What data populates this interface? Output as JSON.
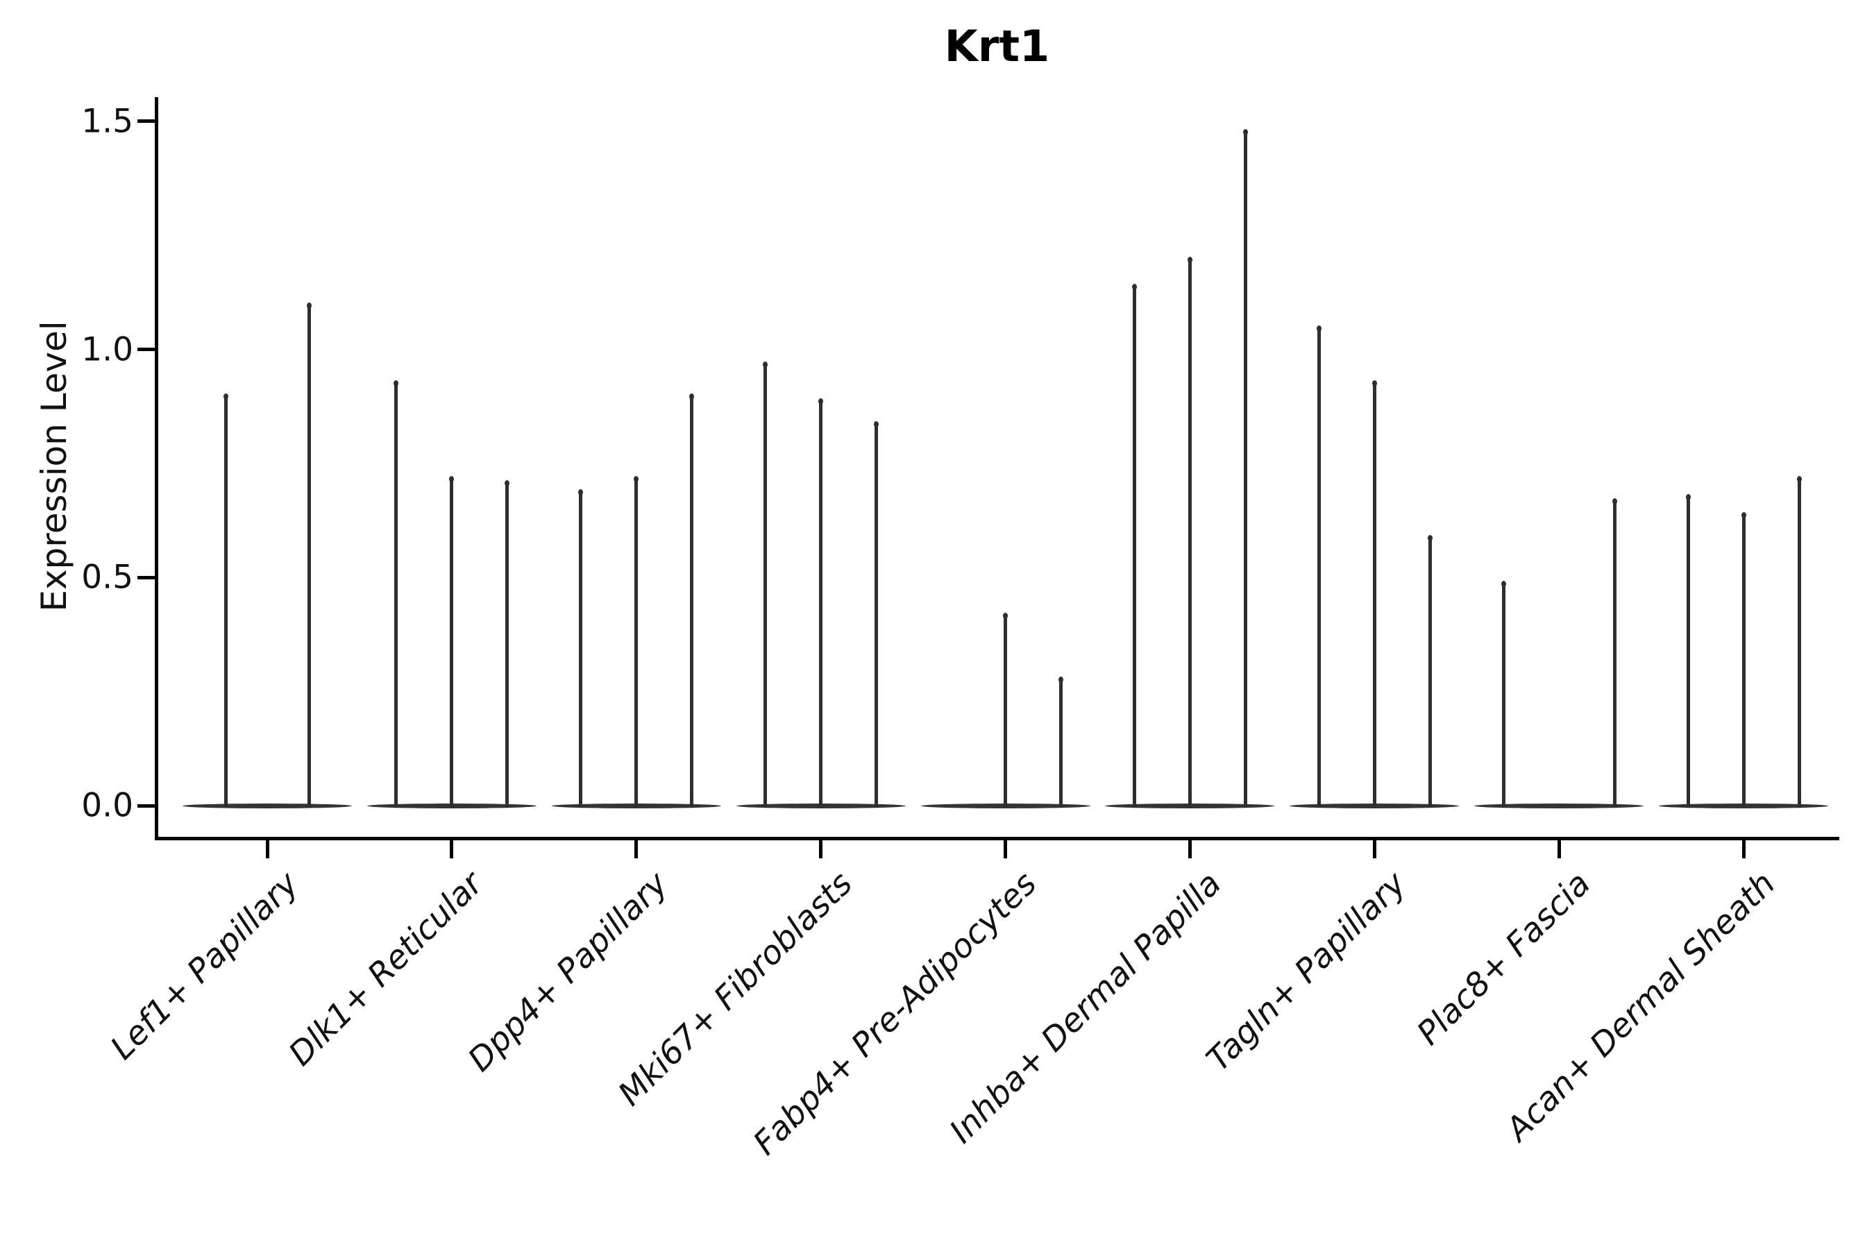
{
  "title": "Krt1",
  "y_axis": {
    "label": "Expression Level"
  },
  "chart_data": {
    "type": "violin",
    "title": "Krt1",
    "xlabel": "",
    "ylabel": "Expression Level",
    "ylim": [
      -0.07,
      1.55
    ],
    "yticks": [
      0.0,
      0.5,
      1.0,
      1.5
    ],
    "ytick_labels": [
      "0.0",
      "0.5",
      "1.0",
      "1.5"
    ],
    "grid": false,
    "legend": "none",
    "categories": [
      "Lef1+ Papillary",
      "Dlk1+ Reticular",
      "Dpp4+ Papillary",
      "Mki67+ Fibroblasts",
      "Fabp4+ Pre-Adipocytes",
      "Inhba+ Dermal Papilla",
      "Tagln+ Papillary",
      "Plac8+ Fascia",
      "Acan+ Dermal Sheath"
    ],
    "groups": [
      {
        "label": "Lef1+ Papillary",
        "n_slots": 2,
        "violins": [
          {
            "slot": 0,
            "max": 0.9
          },
          {
            "slot": 1,
            "max": 1.1
          }
        ]
      },
      {
        "label": "Dlk1+ Reticular",
        "n_slots": 3,
        "violins": [
          {
            "slot": 0,
            "max": 0.93
          },
          {
            "slot": 1,
            "max": 0.72
          },
          {
            "slot": 2,
            "max": 0.71
          }
        ]
      },
      {
        "label": "Dpp4+ Papillary",
        "n_slots": 3,
        "violins": [
          {
            "slot": 0,
            "max": 0.69
          },
          {
            "slot": 1,
            "max": 0.72
          },
          {
            "slot": 2,
            "max": 0.9
          }
        ]
      },
      {
        "label": "Mki67+ Fibroblasts",
        "n_slots": 3,
        "violins": [
          {
            "slot": 0,
            "max": 0.97
          },
          {
            "slot": 1,
            "max": 0.89
          },
          {
            "slot": 2,
            "max": 0.84
          }
        ]
      },
      {
        "label": "Fabp4+ Pre-Adipocytes",
        "n_slots": 3,
        "violins": [
          {
            "slot": 1,
            "max": 0.42
          },
          {
            "slot": 2,
            "max": 0.28
          }
        ]
      },
      {
        "label": "Inhba+ Dermal Papilla",
        "n_slots": 3,
        "violins": [
          {
            "slot": 0,
            "max": 1.14
          },
          {
            "slot": 1,
            "max": 1.2
          },
          {
            "slot": 2,
            "max": 1.48
          }
        ]
      },
      {
        "label": "Tagln+ Papillary",
        "n_slots": 3,
        "violins": [
          {
            "slot": 0,
            "max": 1.05
          },
          {
            "slot": 1,
            "max": 0.93
          },
          {
            "slot": 2,
            "max": 0.59
          }
        ]
      },
      {
        "label": "Plac8+ Fascia",
        "n_slots": 3,
        "violins": [
          {
            "slot": 0,
            "max": 0.49
          },
          {
            "slot": 2,
            "max": 0.67
          }
        ]
      },
      {
        "label": "Acan+ Dermal Sheath",
        "n_slots": 3,
        "violins": [
          {
            "slot": 0,
            "max": 0.68
          },
          {
            "slot": 1,
            "max": 0.64
          },
          {
            "slot": 2,
            "max": 0.72
          }
        ]
      }
    ],
    "baseline_value": 0.0,
    "colors": {
      "violin": "#2e2e2e",
      "axis": "#000000",
      "text": "#111111"
    }
  }
}
